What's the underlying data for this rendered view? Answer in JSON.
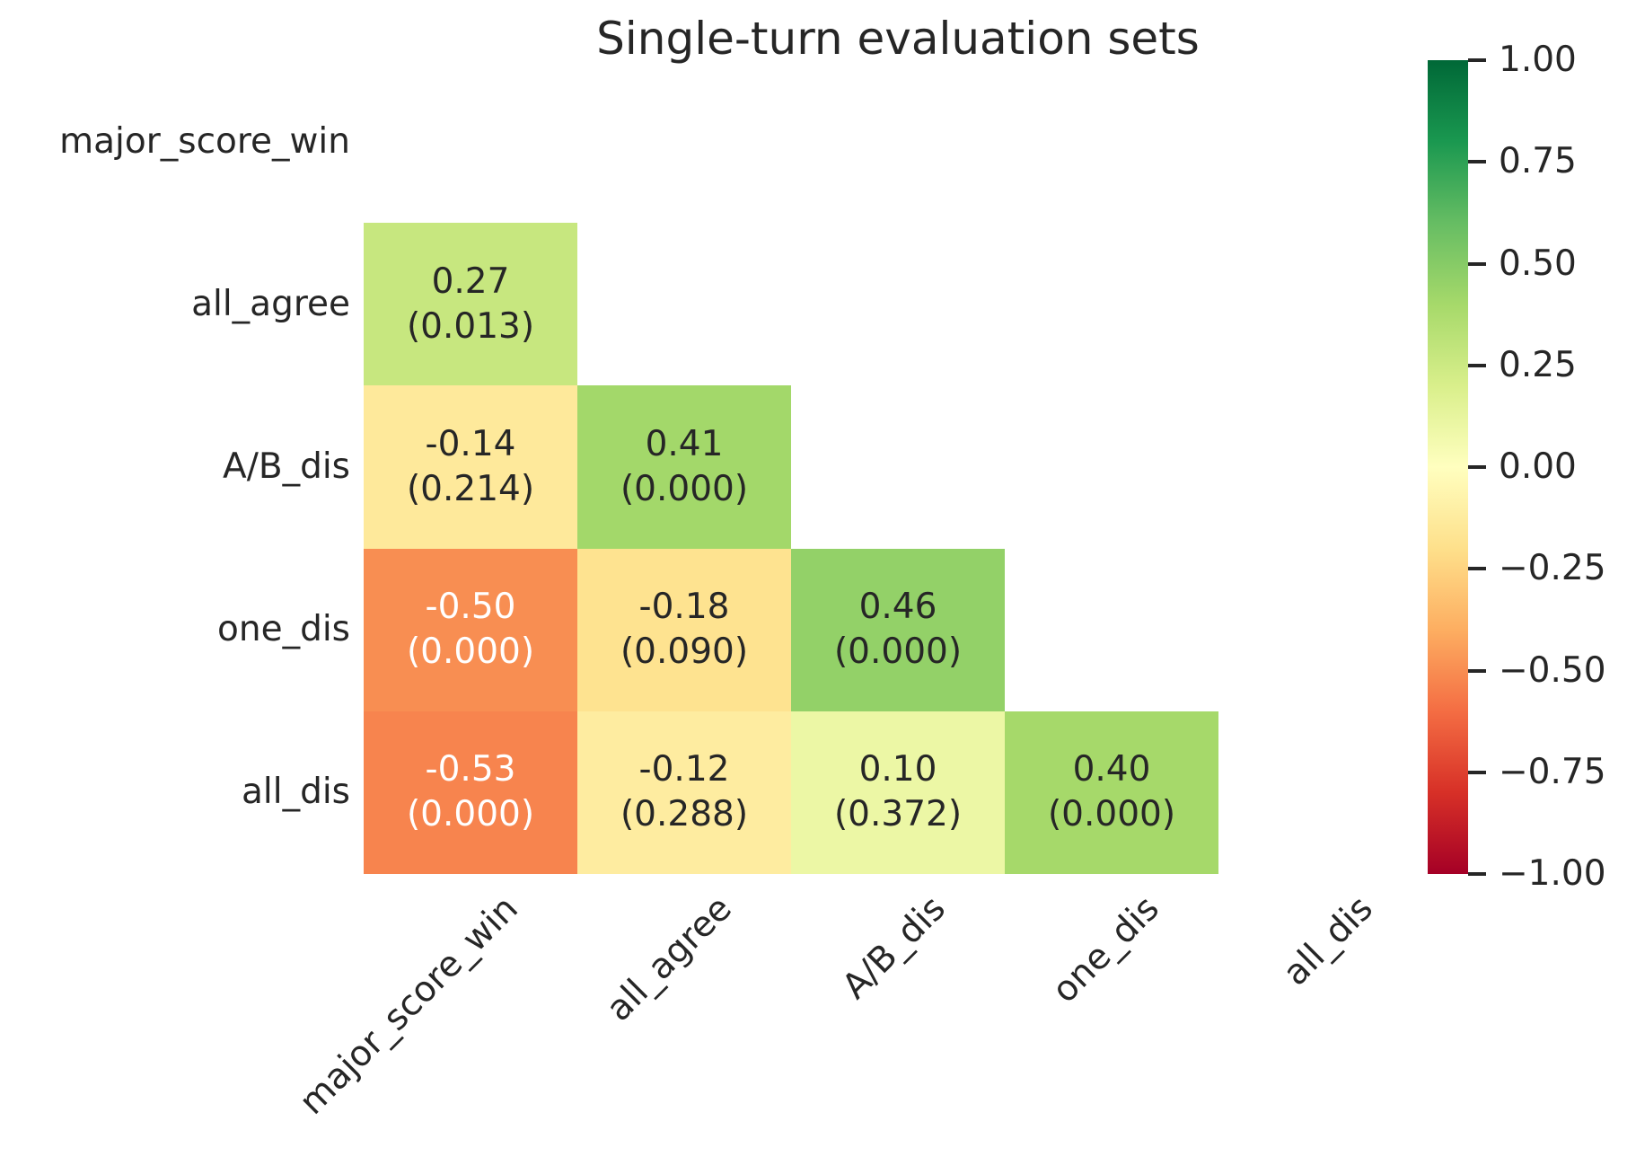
{
  "title": "Single-turn evaluation sets",
  "background_color": "#ffffff",
  "text_color": "#262626",
  "chart_data": {
    "type": "heatmap",
    "title": "Single-turn evaluation sets",
    "subtitle": "",
    "x_tick_labels": [
      "major_score_win",
      "all_agree",
      "A/B_dis",
      "one_dis",
      "all_dis"
    ],
    "y_tick_labels": [
      "major_score_win",
      "all_agree",
      "A/B_dis",
      "one_dis",
      "all_dis"
    ],
    "mask": "upper-triangle-and-diagonal-hidden",
    "value_range": [
      -1,
      1
    ],
    "grid": false,
    "cells": [
      {
        "row": 1,
        "col": 0,
        "value": "0.27",
        "p_value": "(0.013)",
        "color": "#c7e77f",
        "text_color": "#262626"
      },
      {
        "row": 2,
        "col": 0,
        "value": "-0.14",
        "p_value": "(0.214)",
        "color": "#fee99b",
        "text_color": "#262626"
      },
      {
        "row": 2,
        "col": 1,
        "value": "0.41",
        "p_value": "(0.000)",
        "color": "#a3d86a",
        "text_color": "#262626"
      },
      {
        "row": 3,
        "col": 0,
        "value": "-0.50",
        "p_value": "(0.000)",
        "color": "#f88e52",
        "text_color": "#ffffff"
      },
      {
        "row": 3,
        "col": 1,
        "value": "-0.18",
        "p_value": "(0.090)",
        "color": "#fee390",
        "text_color": "#262626"
      },
      {
        "row": 3,
        "col": 2,
        "value": "0.46",
        "p_value": "(0.000)",
        "color": "#93d168",
        "text_color": "#262626"
      },
      {
        "row": 4,
        "col": 0,
        "value": "-0.53",
        "p_value": "(0.000)",
        "color": "#f7844e",
        "text_color": "#ffffff"
      },
      {
        "row": 4,
        "col": 1,
        "value": "-0.12",
        "p_value": "(0.288)",
        "color": "#feeca0",
        "text_color": "#262626"
      },
      {
        "row": 4,
        "col": 2,
        "value": "0.10",
        "p_value": "(0.372)",
        "color": "#ecf7a5",
        "text_color": "#262626"
      },
      {
        "row": 4,
        "col": 3,
        "value": "0.40",
        "p_value": "(0.000)",
        "color": "#a6d96a",
        "text_color": "#262626"
      }
    ],
    "colorbar": {
      "position": "right",
      "vmin": -1,
      "vmax": 1,
      "tick_labels": [
        "1.00",
        "0.75",
        "0.50",
        "0.25",
        "0.00",
        "−0.25",
        "−0.50",
        "−0.75",
        "−1.00"
      ],
      "colormap_name": "RdYlGn",
      "gradient_stops_top_to_bottom": [
        "#006837",
        "#1a9850",
        "#66bd63",
        "#a6d96a",
        "#d9ef8b",
        "#ffffbf",
        "#fee08b",
        "#fdae61",
        "#f46d43",
        "#d73027",
        "#a50026"
      ]
    }
  }
}
